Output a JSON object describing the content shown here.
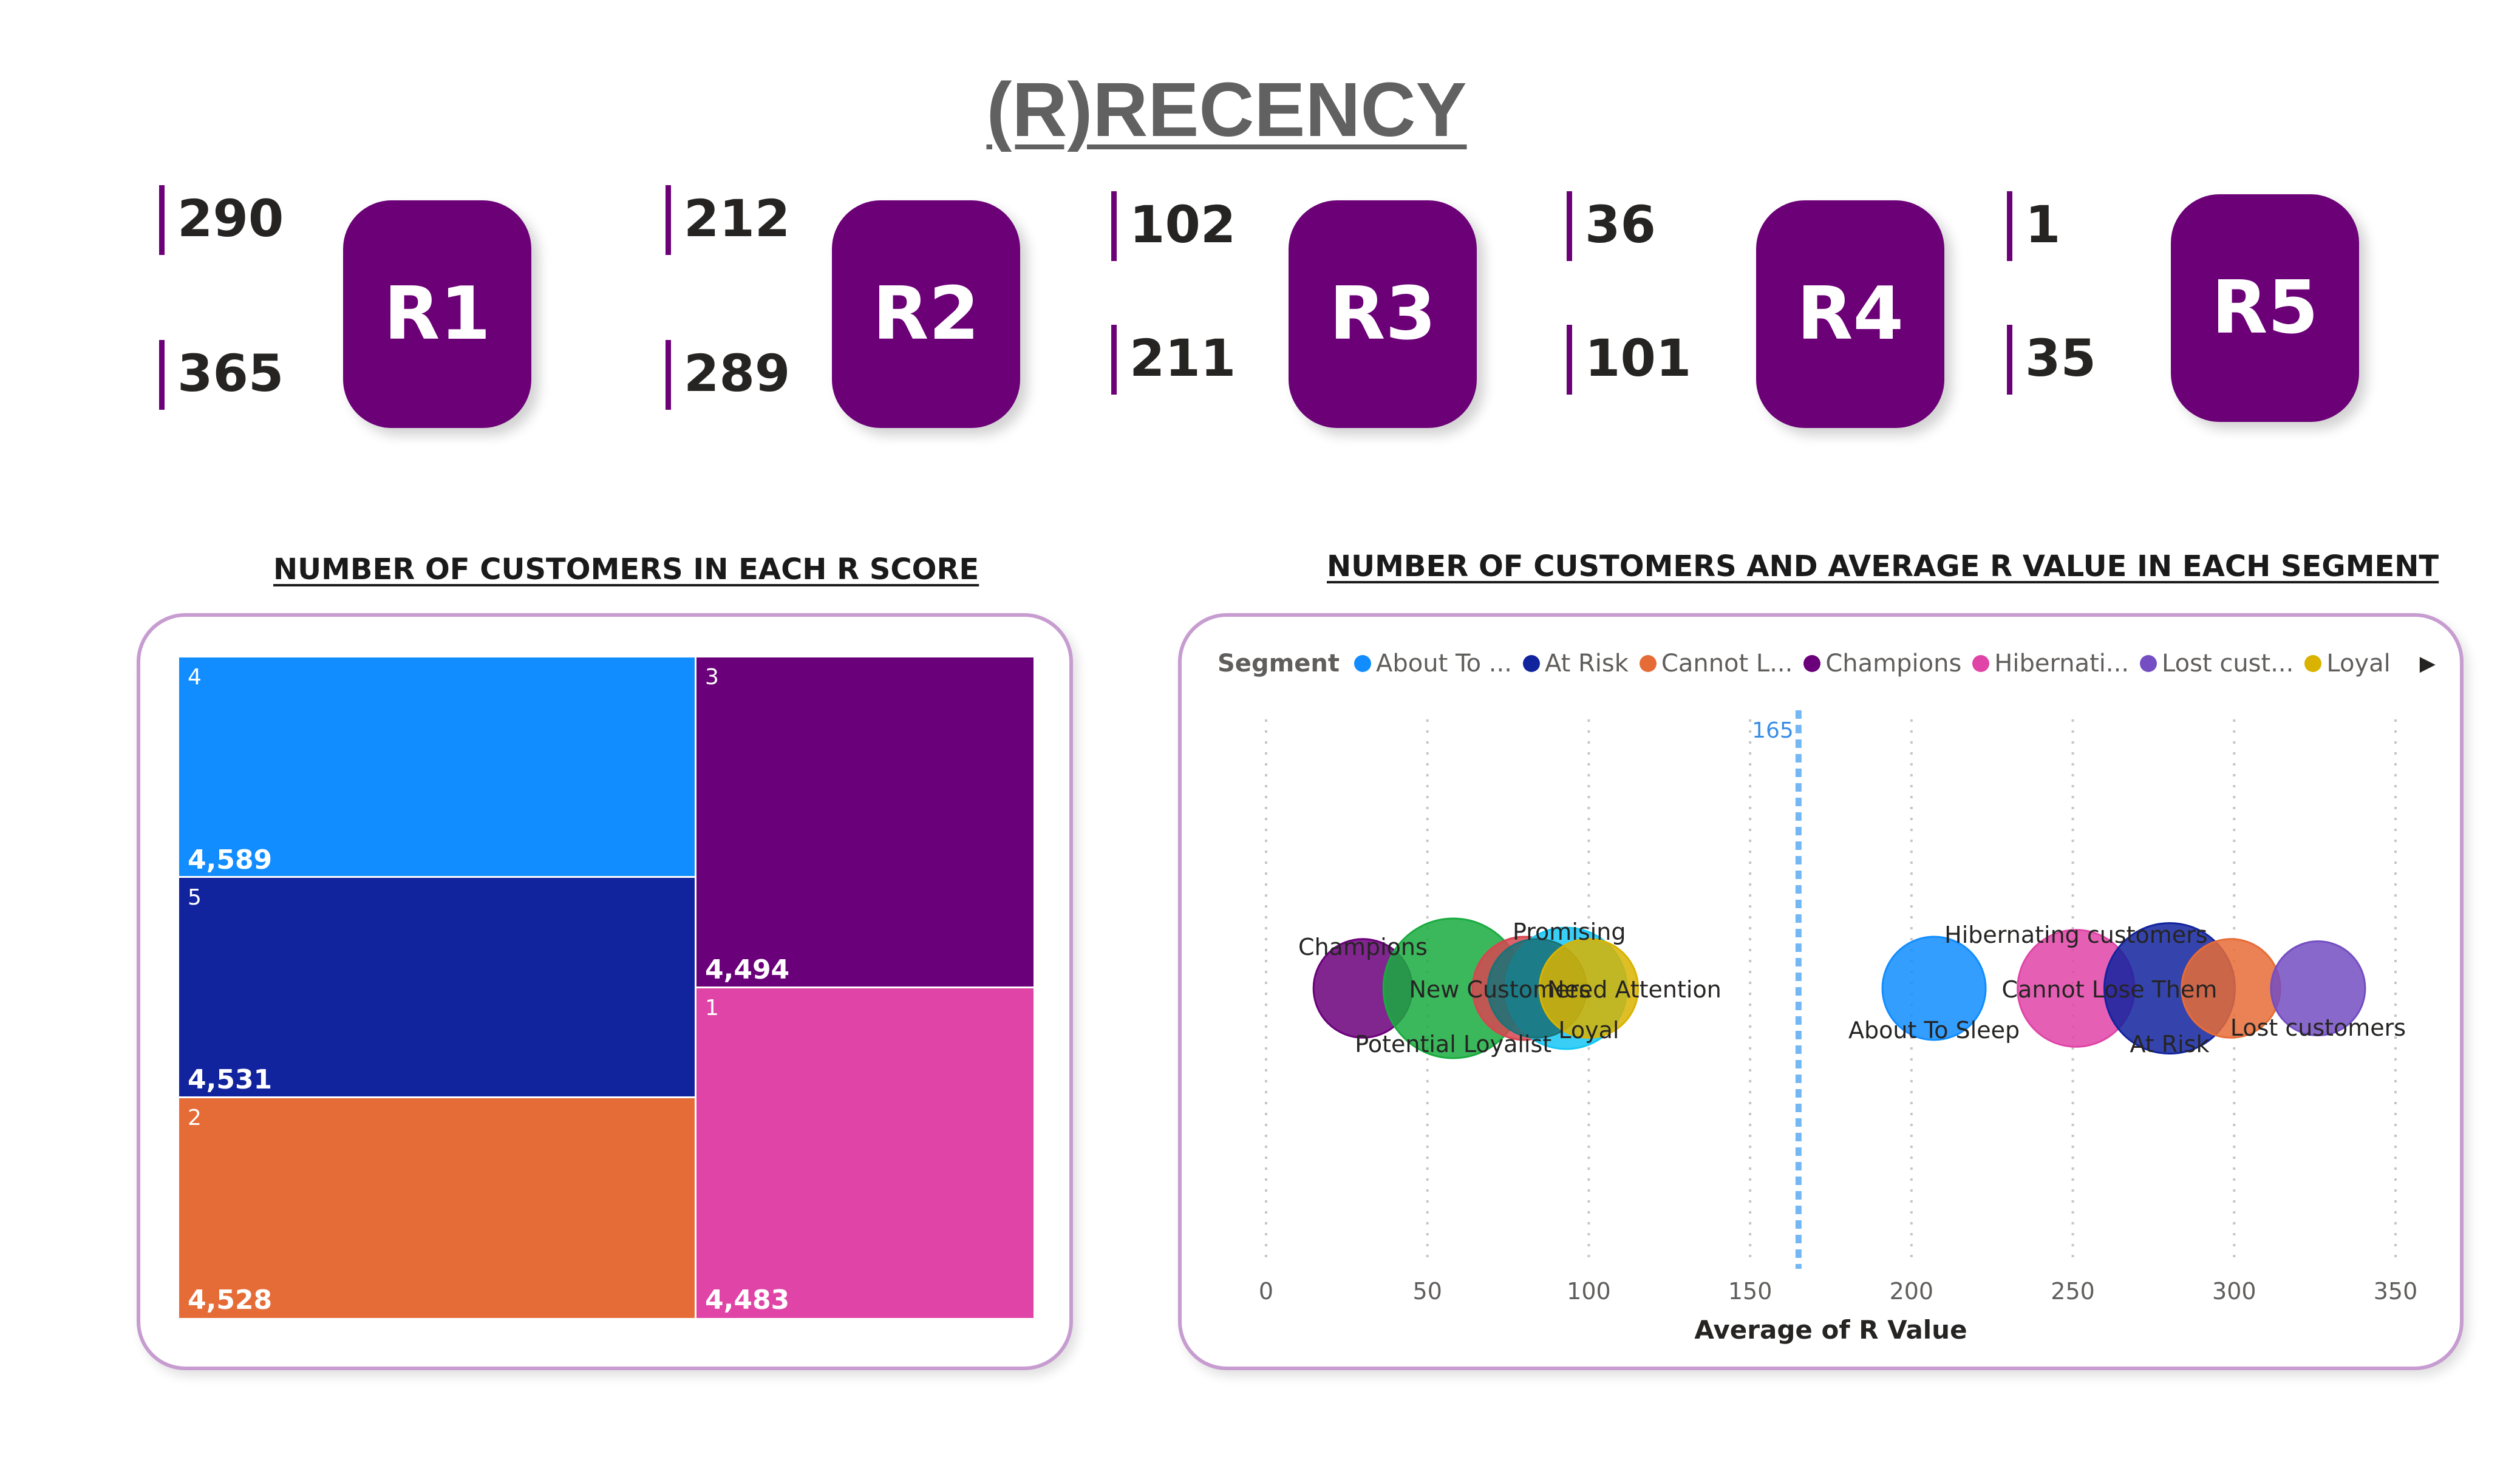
{
  "title": "(R)RECENCY",
  "score_cards": [
    {
      "label": "R1",
      "min": "290",
      "max": "365"
    },
    {
      "label": "R2",
      "min": "212",
      "max": "289"
    },
    {
      "label": "R3",
      "min": "102",
      "max": "211"
    },
    {
      "label": "R4",
      "min": "36",
      "max": "101"
    },
    {
      "label": "R5",
      "min": "1",
      "max": "35"
    }
  ],
  "treemap": {
    "title": "NUMBER OF CUSTOMERS IN EACH R SCORE",
    "tiles": [
      {
        "category": "4",
        "value": "4,589",
        "color": "#118dff"
      },
      {
        "category": "5",
        "value": "4,531",
        "color": "#12239e"
      },
      {
        "category": "2",
        "value": "4,528",
        "color": "#e66c37"
      },
      {
        "category": "3",
        "value": "4,494",
        "color": "#6b007b"
      },
      {
        "category": "1",
        "value": "4,483",
        "color": "#e044a7"
      }
    ]
  },
  "scatter": {
    "title": "NUMBER OF CUSTOMERS AND AVERAGE R VALUE IN EACH SEGMENT",
    "legend_title": "Segment",
    "legend": [
      {
        "label": "About To ...",
        "color": "#118dff"
      },
      {
        "label": "At Risk",
        "color": "#12239e"
      },
      {
        "label": "Cannot L...",
        "color": "#e66c37"
      },
      {
        "label": "Champions",
        "color": "#6b007b"
      },
      {
        "label": "Hibernati...",
        "color": "#e044a7"
      },
      {
        "label": "Lost cust...",
        "color": "#744ec2"
      },
      {
        "label": "Loyal",
        "color": "#d9b300"
      }
    ],
    "legend_arrow": "▶",
    "avg_line_label": "165"
  },
  "chart_data": [
    {
      "type": "treemap",
      "title": "NUMBER OF CUSTOMERS IN EACH R SCORE",
      "categories": [
        "4",
        "5",
        "2",
        "3",
        "1"
      ],
      "values": [
        4589,
        4531,
        4528,
        4494,
        4483
      ]
    },
    {
      "type": "scatter",
      "title": "NUMBER OF CUSTOMERS AND AVERAGE R VALUE IN EACH SEGMENT",
      "xlabel": "Average of R Value",
      "xlim": [
        0,
        350
      ],
      "xticks": [
        0,
        50,
        100,
        150,
        200,
        250,
        300,
        350
      ],
      "average_line": 165,
      "points": [
        {
          "name": "Champions",
          "x": 30,
          "size": 0.55,
          "color": "#6b007b"
        },
        {
          "name": "Potential Loyalist",
          "x": 58,
          "size": 1.0,
          "color": "#1aab40"
        },
        {
          "name": "New Customers",
          "x": 80,
          "size": 0.6,
          "color": "#d64550"
        },
        {
          "name": "Promising",
          "x": 93,
          "size": 0.8,
          "color": "#15c6f4"
        },
        {
          "name": "Need Attention",
          "x": 84,
          "size": 0.55,
          "color": "#197278"
        },
        {
          "name": "Loyal",
          "x": 100,
          "size": 0.55,
          "color": "#d9b300"
        },
        {
          "name": "About To Sleep",
          "x": 207,
          "size": 0.6,
          "color": "#118dff"
        },
        {
          "name": "Hibernating customers",
          "x": 251,
          "size": 0.75,
          "color": "#e044a7"
        },
        {
          "name": "At Risk",
          "x": 280,
          "size": 0.9,
          "color": "#12239e"
        },
        {
          "name": "Cannot Lose Them",
          "x": 299,
          "size": 0.55,
          "color": "#e66c37"
        },
        {
          "name": "Lost customers",
          "x": 326,
          "size": 0.5,
          "color": "#744ec2"
        }
      ]
    }
  ]
}
